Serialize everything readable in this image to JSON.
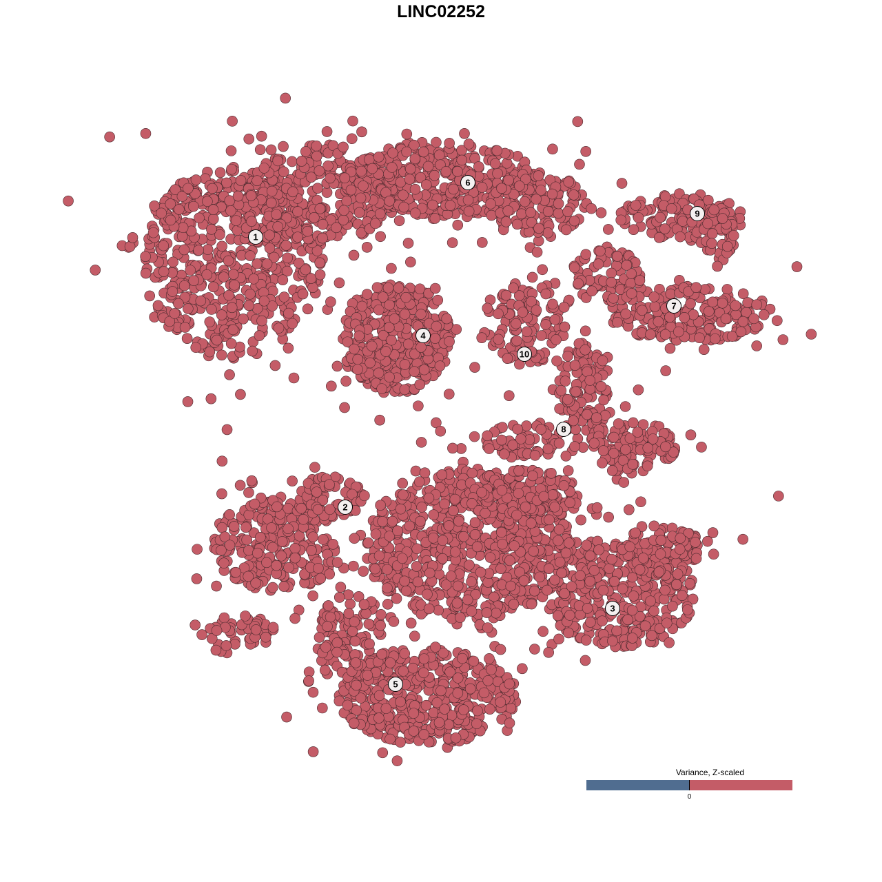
{
  "chart_data": {
    "type": "scatter",
    "title": "LINC02252",
    "point_color": "#c45c67",
    "point_stroke": "#4a2a2e",
    "clusters": [
      {
        "label": "1"
      },
      {
        "label": "2"
      },
      {
        "label": "3"
      },
      {
        "label": "4"
      },
      {
        "label": "5"
      },
      {
        "label": "6"
      },
      {
        "label": "7"
      },
      {
        "label": "8"
      },
      {
        "label": "9"
      },
      {
        "label": "10"
      }
    ],
    "legend": {
      "title": "Variance, Z-scaled",
      "tick_label": "0",
      "low_color": "#506d90",
      "high_color": "#c45c67"
    },
    "grid": false,
    "axes_visible": false
  }
}
